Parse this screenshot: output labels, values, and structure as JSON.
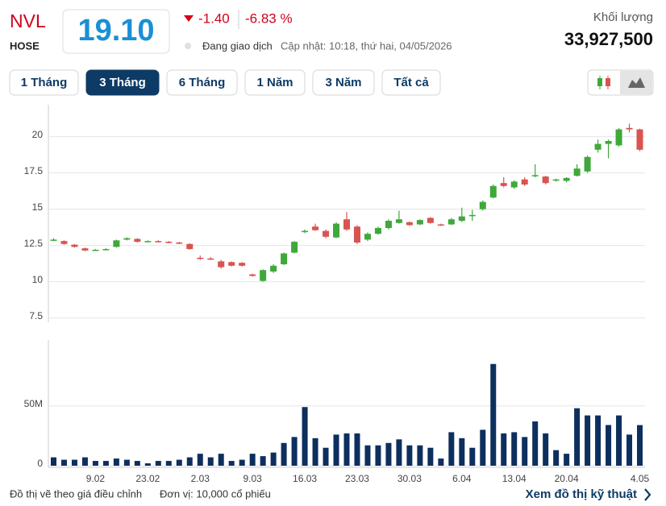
{
  "header": {
    "ticker": "NVL",
    "exchange": "HOSE",
    "price": "19.10",
    "change": "-1.40",
    "change_pct": "-6.83 %",
    "status": "Đang giao dịch",
    "updated": "Cập nhật: 10:18, thứ hai, 04/05/2026",
    "volume_label": "Khối lượng",
    "volume": "33,927,500"
  },
  "tabs": [
    "1 Tháng",
    "3 Tháng",
    "6 Tháng",
    "1 Năm",
    "3 Năm",
    "Tất cả"
  ],
  "active_tab": 1,
  "chart_data": [
    {
      "type": "candlestick",
      "up_color": "#3fa83a",
      "down_color": "#d9534f",
      "open": [
        12.85,
        12.8,
        12.55,
        12.3,
        12.2,
        12.2,
        12.4,
        12.9,
        12.95,
        12.8,
        12.8,
        12.75,
        12.7,
        12.6,
        11.65,
        11.6,
        11.4,
        11.35,
        11.3,
        10.5,
        10.05,
        10.7,
        11.2,
        12.0,
        13.45,
        13.8,
        13.5,
        13.05,
        14.3,
        13.8,
        12.9,
        13.3,
        13.7,
        14.05,
        14.1,
        13.95,
        14.4,
        13.95,
        13.95,
        14.2,
        14.55,
        15.0,
        15.8,
        16.8,
        16.5,
        17.05,
        17.3,
        17.25,
        17.0,
        16.95,
        17.3,
        17.6,
        19.1,
        19.5,
        19.4,
        20.6,
        20.5
      ],
      "high": [
        13.0,
        12.85,
        12.6,
        12.35,
        12.25,
        12.3,
        12.9,
        13.05,
        13.0,
        12.85,
        12.85,
        12.8,
        12.75,
        12.65,
        11.8,
        11.7,
        11.5,
        11.4,
        11.35,
        10.55,
        10.85,
        11.2,
        12.0,
        12.8,
        13.6,
        14.0,
        13.6,
        14.1,
        14.8,
        13.9,
        13.4,
        13.8,
        14.3,
        14.9,
        14.15,
        14.3,
        14.45,
        14.0,
        14.4,
        15.1,
        14.95,
        15.6,
        16.7,
        17.2,
        17.0,
        17.2,
        18.1,
        17.3,
        17.1,
        17.2,
        18.1,
        18.7,
        19.8,
        19.8,
        20.6,
        20.9,
        20.55
      ],
      "low": [
        12.8,
        12.55,
        12.35,
        12.1,
        12.15,
        12.15,
        12.35,
        12.85,
        12.7,
        12.75,
        12.7,
        12.65,
        12.6,
        12.2,
        11.5,
        11.5,
        10.9,
        11.05,
        11.05,
        10.35,
        10.0,
        10.6,
        11.15,
        11.95,
        13.35,
        13.5,
        13.0,
        13.0,
        13.5,
        12.6,
        12.8,
        13.25,
        13.6,
        14.0,
        13.85,
        13.9,
        14.0,
        13.85,
        13.9,
        14.1,
        14.2,
        14.9,
        15.75,
        16.5,
        16.4,
        16.6,
        17.2,
        16.7,
        16.9,
        16.85,
        17.25,
        17.5,
        18.9,
        18.5,
        19.3,
        20.3,
        19.0
      ],
      "close": [
        12.9,
        12.6,
        12.4,
        12.15,
        12.2,
        12.25,
        12.85,
        13.0,
        12.75,
        12.8,
        12.75,
        12.7,
        12.65,
        12.25,
        11.6,
        11.55,
        11.0,
        11.1,
        11.1,
        10.4,
        10.8,
        11.1,
        11.95,
        12.75,
        13.5,
        13.55,
        13.1,
        14.0,
        13.6,
        12.7,
        13.3,
        13.7,
        14.2,
        14.3,
        13.9,
        14.25,
        14.05,
        13.9,
        14.3,
        14.5,
        14.6,
        15.5,
        16.6,
        16.6,
        16.9,
        16.7,
        17.35,
        16.8,
        17.05,
        17.15,
        17.8,
        18.6,
        19.5,
        19.7,
        20.5,
        20.5,
        19.1
      ],
      "ylim": [
        7.2,
        22.2
      ],
      "yticks": [
        7.5,
        10,
        12.5,
        15,
        17.5,
        20
      ],
      "grid": true
    },
    {
      "type": "bar",
      "color": "#0d2f5e",
      "categories": [
        null,
        null,
        null,
        null,
        "9.02",
        null,
        null,
        null,
        null,
        "23.02",
        null,
        null,
        null,
        null,
        "2.03",
        null,
        null,
        null,
        null,
        "9.03",
        null,
        null,
        null,
        null,
        "16.03",
        null,
        null,
        null,
        null,
        "23.03",
        null,
        null,
        null,
        null,
        "30.03",
        null,
        null,
        null,
        null,
        "6.04",
        null,
        null,
        null,
        null,
        "13.04",
        null,
        null,
        null,
        null,
        "20.04",
        null,
        null,
        null,
        null,
        null,
        null,
        "4.05"
      ],
      "values": [
        7000000,
        5000000,
        5000000,
        7000000,
        4000000,
        4000000,
        6000000,
        5000000,
        4000000,
        2000000,
        4000000,
        4000000,
        5000000,
        7000000,
        10000000,
        7000000,
        10000000,
        4000000,
        5000000,
        10000000,
        8000000,
        11000000,
        19000000,
        24000000,
        49000000,
        23000000,
        15000000,
        26000000,
        27000000,
        27000000,
        17000000,
        17000000,
        19000000,
        22000000,
        17000000,
        17000000,
        15000000,
        6000000,
        28000000,
        23000000,
        15000000,
        30000000,
        85000000,
        27000000,
        28000000,
        24000000,
        37000000,
        27000000,
        13000000,
        10000000,
        48000000,
        42000000,
        42000000,
        34000000,
        42000000,
        26000000,
        33927500
      ],
      "ylim": [
        0,
        105000000
      ],
      "yticks": [
        0,
        {
          "value": 50000000,
          "label": "50M"
        }
      ],
      "grid": true
    }
  ],
  "footer": {
    "note": "Đồ thị vẽ theo giá điều chỉnh",
    "unit": "Đơn vị: 10,000 cổ phiếu",
    "link": "Xem đồ thị kỹ thuật"
  }
}
